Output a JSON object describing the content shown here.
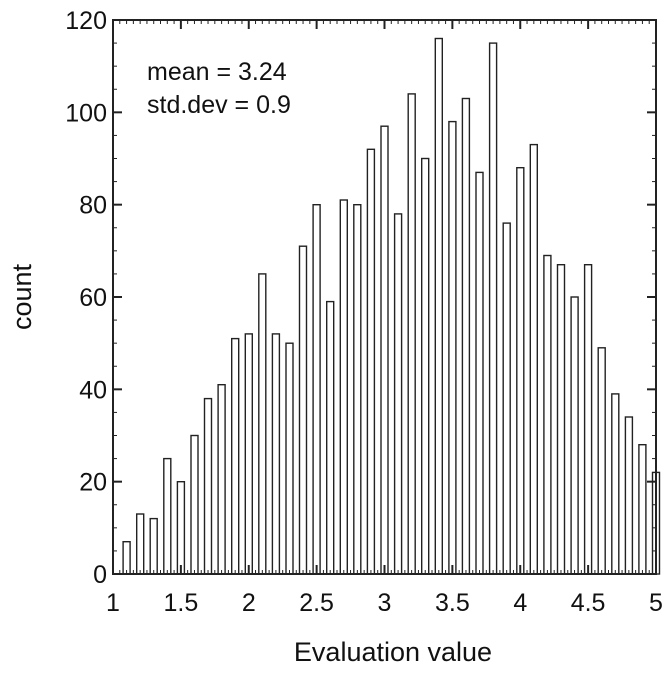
{
  "chart_data": {
    "type": "bar",
    "xlabel": "Evaluation value",
    "ylabel": "count",
    "xlim": [
      1,
      5
    ],
    "ylim": [
      0,
      120
    ],
    "xticks": [
      "1",
      "1.5",
      "2",
      "2.5",
      "3",
      "3.5",
      "4",
      "4.5",
      "5"
    ],
    "yticks": [
      "0",
      "20",
      "40",
      "60",
      "80",
      "100",
      "120"
    ],
    "annotations": [
      "mean = 3.24",
      "std.dev = 0.9"
    ],
    "grid": false,
    "bar_color": "#ffffff",
    "edge_color": "#222222",
    "x": [
      1.1,
      1.2,
      1.3,
      1.4,
      1.5,
      1.6,
      1.7,
      1.8,
      1.9,
      2.0,
      2.1,
      2.2,
      2.3,
      2.4,
      2.5,
      2.6,
      2.7,
      2.8,
      2.9,
      3.0,
      3.1,
      3.2,
      3.3,
      3.4,
      3.5,
      3.6,
      3.7,
      3.8,
      3.9,
      4.0,
      4.1,
      4.2,
      4.3,
      4.4,
      4.5,
      4.6,
      4.7,
      4.8,
      4.9,
      5.0
    ],
    "values": [
      7,
      13,
      12,
      25,
      20,
      30,
      38,
      41,
      51,
      52,
      65,
      52,
      50,
      71,
      80,
      59,
      81,
      80,
      92,
      97,
      78,
      104,
      90,
      116,
      98,
      103,
      87,
      115,
      76,
      88,
      93,
      69,
      67,
      60,
      67,
      49,
      39,
      34,
      28,
      22
    ]
  }
}
